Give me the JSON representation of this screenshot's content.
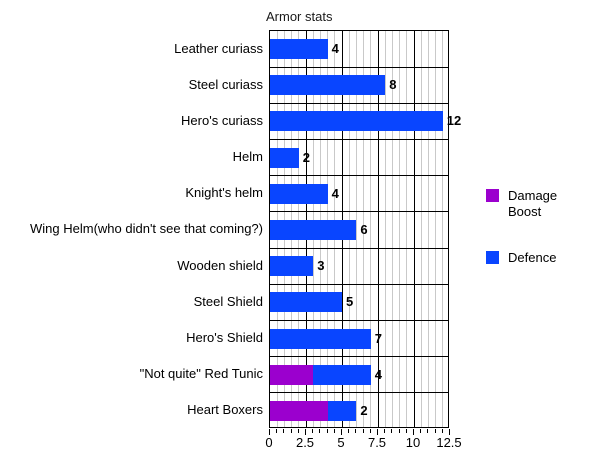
{
  "chart_data": {
    "type": "bar",
    "orientation": "horizontal",
    "title": "Armor stats",
    "categories": [
      "Leather curiass",
      "Steel curiass",
      "Hero's curiass",
      "Helm",
      "Knight's helm",
      "Wing Helm(who didn't see that coming?)",
      "Wooden shield",
      "Steel Shield",
      "Hero's Shield",
      "\"Not quite\" Red Tunic",
      "Heart Boxers"
    ],
    "series": [
      {
        "name": "Damage Boost",
        "color": "#9b00ce",
        "values": [
          0,
          0,
          0,
          0,
          0,
          0,
          0,
          0,
          0,
          3,
          4
        ]
      },
      {
        "name": "Defence",
        "color": "#0945ff",
        "values": [
          4,
          8,
          12,
          2,
          4,
          6,
          3,
          5,
          7,
          4,
          2
        ]
      }
    ],
    "stacked": true,
    "xlim": [
      0,
      12.5
    ],
    "x_ticks": [
      "0",
      "2.5",
      "5",
      "7.5",
      "10",
      "12.5"
    ],
    "minor_tick_step": 0.5,
    "grid": true,
    "legend_position": "right",
    "colors": {
      "background": "#ffffff",
      "minor_grid": "#c9c9c9",
      "major_grid": "#000000",
      "text": "#000000"
    }
  }
}
